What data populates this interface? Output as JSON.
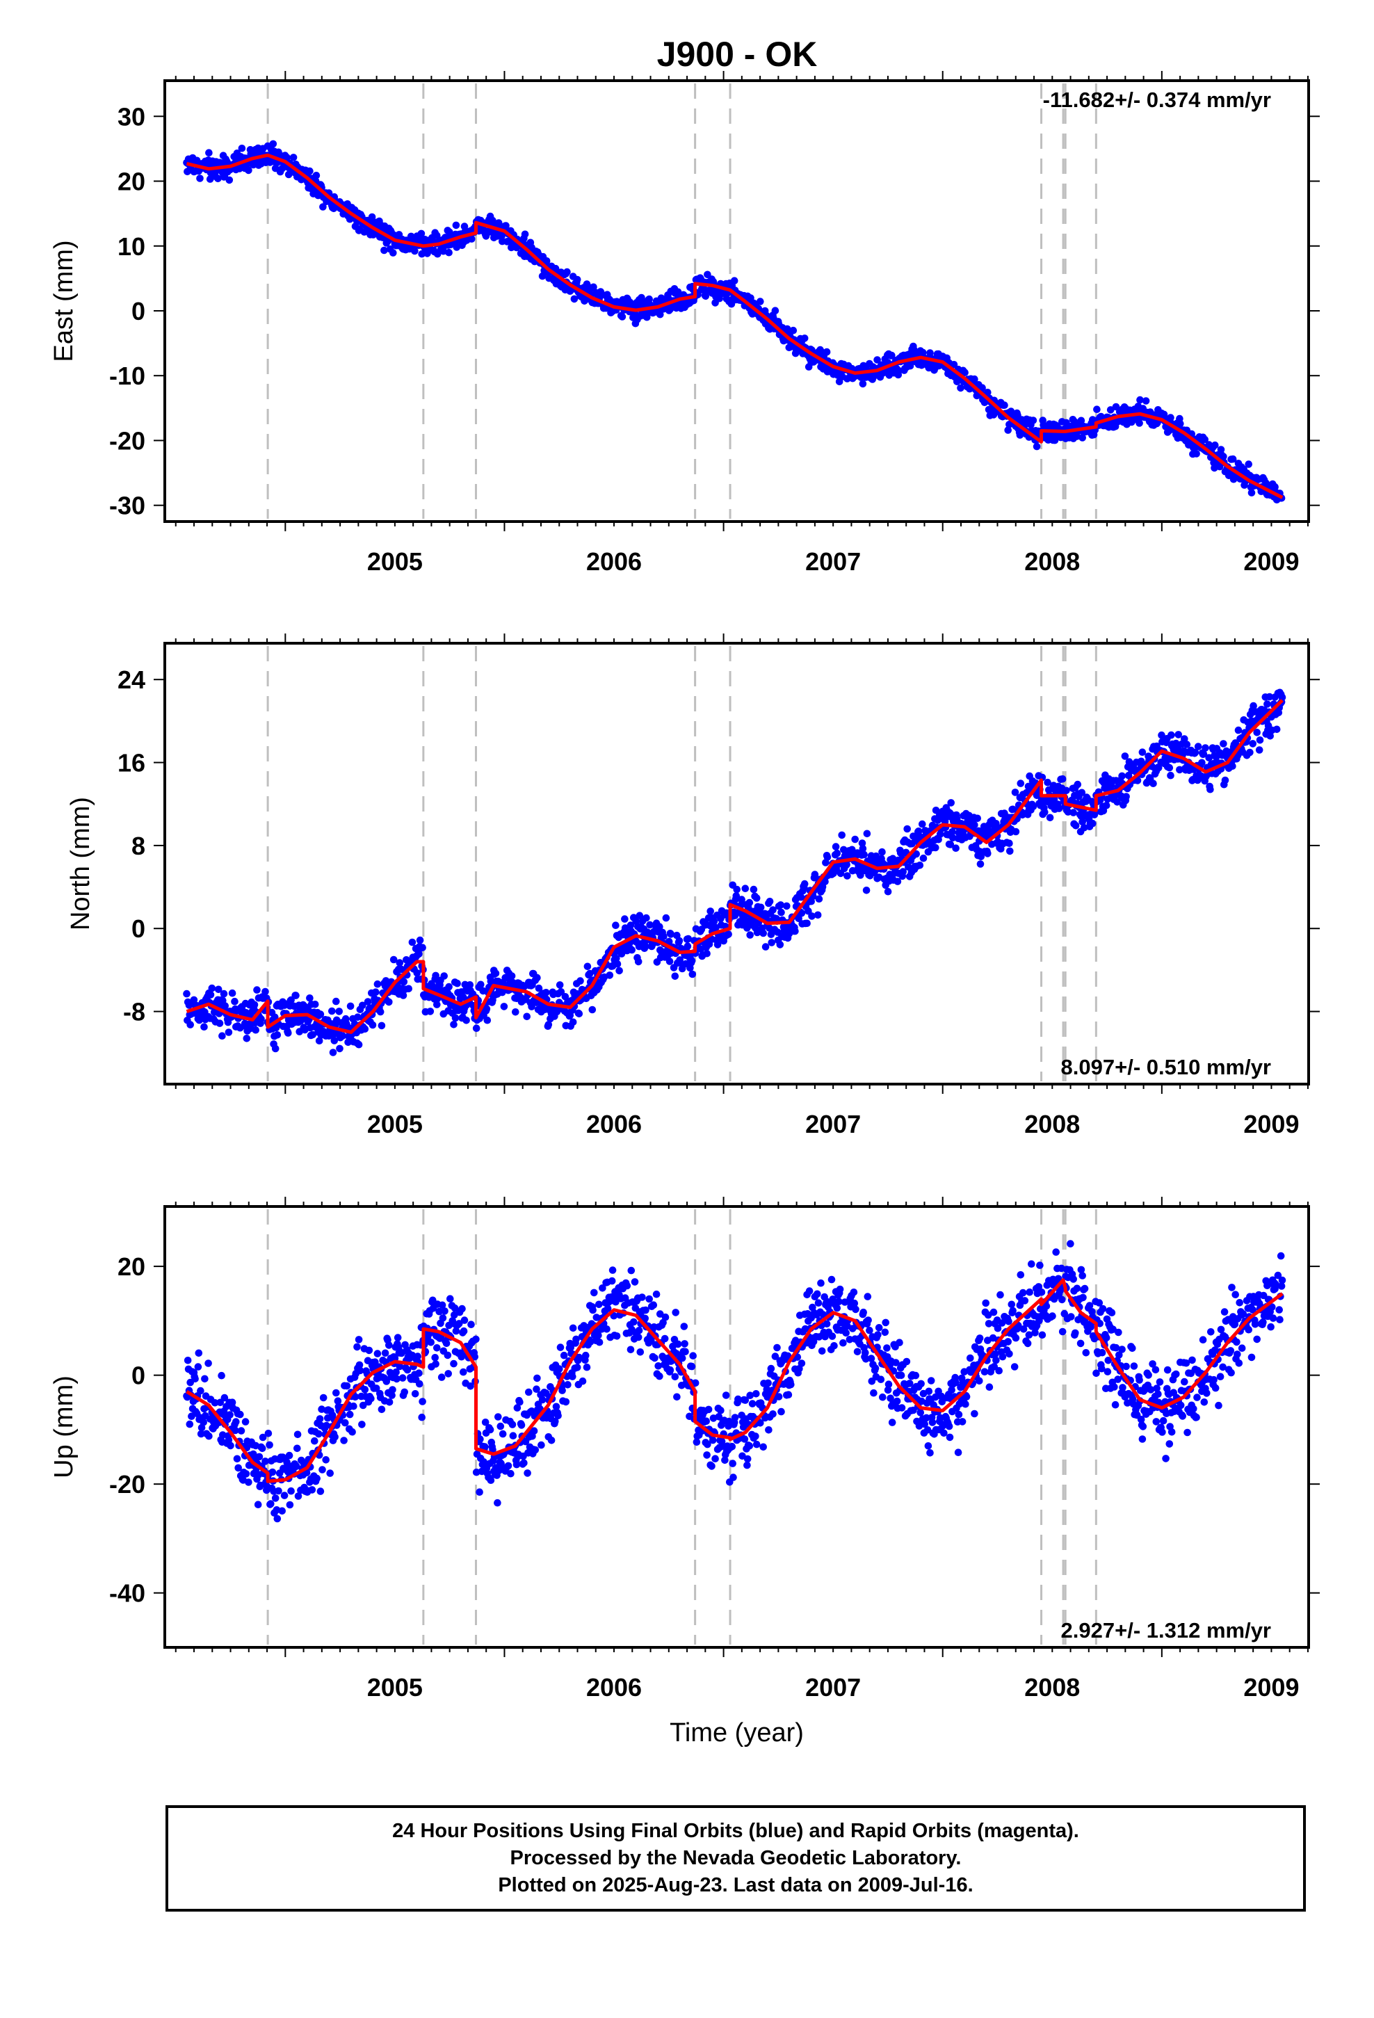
{
  "title": "J900 - OK",
  "colors": {
    "final_orbits": "#0000ff",
    "model": "#ff0000",
    "offsets": "#bfbfbf"
  },
  "offset_epochs": [
    2004.92,
    2005.63,
    2005.87,
    2006.87,
    2007.03,
    2008.45,
    2008.55,
    2008.56,
    2008.7
  ],
  "footer": {
    "line1": "24 Hour Positions Using Final Orbits (blue) and Rapid Orbits (magenta).",
    "line2": "Processed by the Nevada Geodetic Laboratory.",
    "line3": "Plotted on 2025-Aug-23. Last data on 2009-Jul-16."
  },
  "chart_data": [
    {
      "type": "scatter",
      "component": "east",
      "title": "J900 - OK",
      "xlabel": "",
      "ylabel": "East (mm)",
      "xlim": [
        2004.45,
        2009.67
      ],
      "ylim": [
        -32.5,
        35.5
      ],
      "xticks": [
        2005,
        2006,
        2007,
        2008,
        2009
      ],
      "yticks": [
        30,
        20,
        10,
        0,
        -10,
        -20,
        -30
      ],
      "rate_label": "-11.682+/- 0.374 mm/yr",
      "noise": 1.4,
      "model": {
        "x": [
          2004.55,
          2004.65,
          2004.75,
          2004.85,
          2004.92,
          2004.92,
          2005.0,
          2005.1,
          2005.2,
          2005.3,
          2005.4,
          2005.5,
          2005.63,
          2005.63,
          2005.7,
          2005.8,
          2005.87,
          2005.87,
          2006.0,
          2006.1,
          2006.2,
          2006.3,
          2006.4,
          2006.5,
          2006.6,
          2006.7,
          2006.8,
          2006.87,
          2006.87,
          2006.95,
          2007.03,
          2007.03,
          2007.1,
          2007.2,
          2007.3,
          2007.4,
          2007.5,
          2007.6,
          2007.7,
          2007.8,
          2007.9,
          2008.0,
          2008.1,
          2008.2,
          2008.3,
          2008.45,
          2008.45,
          2008.55,
          2008.56,
          2008.56,
          2008.7,
          2008.7,
          2008.8,
          2008.9,
          2009.0,
          2009.1,
          2009.2,
          2009.3,
          2009.4,
          2009.55
        ],
        "y": [
          22.7,
          21.9,
          22.3,
          23.5,
          24.0,
          24.0,
          23.0,
          20.5,
          17.5,
          15.0,
          12.8,
          10.9,
          10.0,
          10.0,
          10.3,
          11.4,
          12.0,
          13.6,
          12.3,
          9.5,
          6.4,
          4.0,
          2.0,
          0.6,
          0.1,
          0.6,
          1.8,
          2.2,
          4.2,
          3.9,
          3.2,
          3.2,
          1.4,
          -1.3,
          -4.3,
          -6.6,
          -8.6,
          -9.6,
          -9.2,
          -7.9,
          -7.2,
          -7.9,
          -10.4,
          -13.4,
          -16.5,
          -20.2,
          -18.5,
          -18.6,
          -18.6,
          -18.6,
          -17.9,
          -17.3,
          -16.3,
          -15.9,
          -16.8,
          -18.8,
          -21.3,
          -24.0,
          -26.2,
          -28.8
        ]
      }
    },
    {
      "type": "scatter",
      "component": "north",
      "title": "",
      "xlabel": "",
      "ylabel": "North (mm)",
      "xlim": [
        2004.45,
        2009.67
      ],
      "ylim": [
        -15,
        27.5
      ],
      "xticks": [
        2005,
        2006,
        2007,
        2008,
        2009
      ],
      "yticks": [
        24,
        16,
        8,
        0,
        -8
      ],
      "rate_label": "8.097+/- 0.510 mm/yr",
      "noise": 1.7,
      "model": {
        "x": [
          2004.55,
          2004.65,
          2004.75,
          2004.85,
          2004.92,
          2004.92,
          2005.0,
          2005.1,
          2005.2,
          2005.3,
          2005.4,
          2005.5,
          2005.6,
          2005.63,
          2005.63,
          2005.7,
          2005.8,
          2005.87,
          2005.87,
          2005.95,
          2006.1,
          2006.2,
          2006.3,
          2006.4,
          2006.5,
          2006.6,
          2006.7,
          2006.8,
          2006.87,
          2006.87,
          2006.95,
          2007.03,
          2007.03,
          2007.1,
          2007.2,
          2007.3,
          2007.4,
          2007.5,
          2007.6,
          2007.7,
          2007.8,
          2007.9,
          2008.0,
          2008.1,
          2008.2,
          2008.3,
          2008.45,
          2008.45,
          2008.55,
          2008.56,
          2008.56,
          2008.7,
          2008.7,
          2008.8,
          2008.9,
          2009.0,
          2009.1,
          2009.2,
          2009.3,
          2009.4,
          2009.55
        ],
        "y": [
          -8.0,
          -7.3,
          -8.3,
          -8.8,
          -7.0,
          -9.5,
          -8.4,
          -8.3,
          -9.5,
          -10.0,
          -8.0,
          -5.2,
          -3.2,
          -3.2,
          -5.8,
          -6.4,
          -7.3,
          -6.6,
          -8.6,
          -5.5,
          -6.1,
          -7.3,
          -7.6,
          -5.5,
          -1.8,
          -0.7,
          -1.2,
          -2.3,
          -2.2,
          -1.5,
          -0.5,
          0.0,
          2.3,
          1.7,
          0.5,
          0.6,
          3.5,
          6.4,
          6.7,
          5.8,
          6.0,
          8.3,
          10.0,
          9.8,
          8.3,
          10.0,
          14.3,
          12.8,
          12.8,
          12.8,
          12.0,
          11.4,
          12.8,
          13.3,
          15.0,
          17.1,
          16.4,
          15.1,
          16.0,
          18.9,
          22.0
        ]
      }
    },
    {
      "type": "scatter",
      "component": "up",
      "title": "",
      "xlabel": "Time (year)",
      "ylabel": "Up (mm)",
      "xlim": [
        2004.45,
        2009.67
      ],
      "ylim": [
        -50,
        31
      ],
      "xticks": [
        2005,
        2006,
        2007,
        2008,
        2009
      ],
      "yticks": [
        20,
        0,
        -20,
        -40
      ],
      "rate_label": "2.927+/- 1.312 mm/yr",
      "noise": 6.0,
      "model": {
        "x": [
          2004.55,
          2004.65,
          2004.75,
          2004.85,
          2004.92,
          2004.92,
          2005.0,
          2005.1,
          2005.2,
          2005.3,
          2005.4,
          2005.5,
          2005.6,
          2005.63,
          2005.63,
          2005.7,
          2005.8,
          2005.87,
          2005.87,
          2005.95,
          2006.05,
          2006.2,
          2006.3,
          2006.4,
          2006.5,
          2006.6,
          2006.7,
          2006.8,
          2006.87,
          2006.87,
          2006.95,
          2007.03,
          2007.03,
          2007.1,
          2007.2,
          2007.3,
          2007.4,
          2007.5,
          2007.6,
          2007.7,
          2007.8,
          2007.9,
          2008.0,
          2008.1,
          2008.2,
          2008.3,
          2008.45,
          2008.45,
          2008.55,
          2008.56,
          2008.56,
          2008.63,
          2008.7,
          2008.7,
          2008.8,
          2008.9,
          2009.0,
          2009.1,
          2009.2,
          2009.3,
          2009.4,
          2009.55
        ],
        "y": [
          -3.0,
          -5.5,
          -10.5,
          -16.0,
          -18.0,
          -19.5,
          -19.2,
          -17.0,
          -10.5,
          -3.5,
          0.5,
          2.5,
          2.0,
          1.5,
          8.5,
          8.0,
          6.0,
          1.5,
          -13.5,
          -14.5,
          -13.0,
          -5.5,
          2.5,
          8.5,
          12.0,
          11.0,
          6.5,
          2.0,
          -3.0,
          -8.5,
          -11.0,
          -11.5,
          -11.8,
          -10.5,
          -6.0,
          2.5,
          8.5,
          11.5,
          10.0,
          4.0,
          -2.0,
          -6.0,
          -6.5,
          -3.0,
          3.5,
          8.5,
          14.0,
          13.0,
          17.5,
          16.0,
          15.5,
          11.5,
          9.5,
          8.0,
          1.5,
          -4.5,
          -6.0,
          -4.0,
          0.5,
          6.0,
          10.5,
          15.0
        ]
      }
    }
  ]
}
